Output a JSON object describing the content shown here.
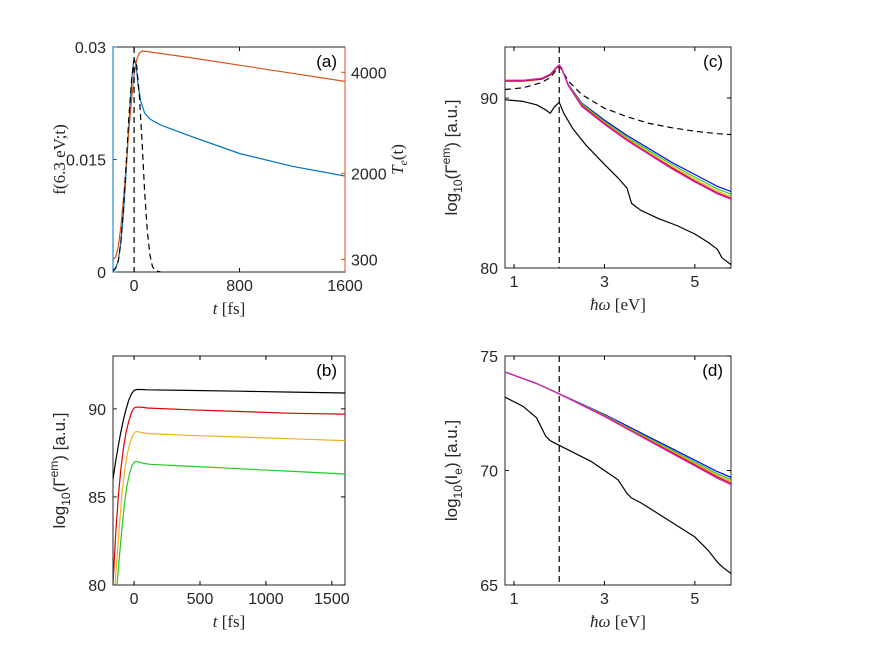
{
  "chart_data": [
    {
      "panel_label": "(a)",
      "type": "line",
      "xlabel": "t [fs]",
      "xlabel_var": "t",
      "xlabel_unit": "[fs]",
      "ylabel_left": "f(6.3 eV;t)",
      "ylabel_right": "T_e(t)",
      "ylabel_right_main": "T",
      "ylabel_right_sub": "e",
      "ylabel_right_tail": "(t)",
      "xlim": [
        -160,
        1600
      ],
      "ylim_left": [
        0,
        0.03
      ],
      "ylim_right": [
        50,
        4500
      ],
      "xticks": [
        0,
        800,
        1600
      ],
      "xtick_labels": [
        "0",
        "800",
        "1600"
      ],
      "yticks_left": [
        0,
        0.015,
        0.03
      ],
      "ytick_labels_left": [
        "0",
        "0.015",
        "0.03"
      ],
      "yticks_right": [
        300,
        2000,
        4000
      ],
      "ytick_labels_right": [
        "300",
        "2000",
        "4000"
      ],
      "colors": {
        "left_axis": "#0072BD",
        "right_axis": "#D95319"
      },
      "series": [
        {
          "axis": "left",
          "color": "#0072BD",
          "style": "solid",
          "x": [
            -160,
            -140,
            -120,
            -100,
            -80,
            -60,
            -40,
            -20,
            -10,
            0,
            10,
            20,
            30,
            50,
            80,
            120,
            200,
            400,
            800,
            1200,
            1600
          ],
          "y": [
            0.0003,
            0.0005,
            0.0015,
            0.004,
            0.008,
            0.0135,
            0.0195,
            0.025,
            0.0272,
            0.0284,
            0.028,
            0.0268,
            0.025,
            0.0228,
            0.0212,
            0.0204,
            0.0196,
            0.0183,
            0.0158,
            0.0141,
            0.0128
          ]
        },
        {
          "axis": "right",
          "color": "#D95319",
          "style": "solid",
          "x": [
            -160,
            -140,
            -120,
            -100,
            -80,
            -60,
            -40,
            -20,
            0,
            20,
            40,
            60,
            100,
            400,
            800,
            1200,
            1600
          ],
          "y": [
            300,
            340,
            550,
            950,
            1500,
            2150,
            2850,
            3450,
            3950,
            4250,
            4380,
            4420,
            4410,
            4300,
            4140,
            3980,
            3820
          ]
        },
        {
          "axis": "left",
          "color": "#000000",
          "style": "dashed",
          "x": [
            -160,
            -140,
            -120,
            -100,
            -80,
            -60,
            -40,
            -20,
            0,
            20,
            40,
            60,
            80,
            100,
            120,
            140,
            160,
            200
          ],
          "y": [
            0.0001,
            0.0005,
            0.0015,
            0.004,
            0.0085,
            0.0145,
            0.0205,
            0.0255,
            0.0284,
            0.0275,
            0.0235,
            0.0175,
            0.0108,
            0.0055,
            0.0023,
            0.0007,
            0.0002,
            0.0
          ]
        }
      ],
      "vline_x": 0
    },
    {
      "panel_label": "(b)",
      "type": "line",
      "xlabel": "t [fs]",
      "xlabel_var": "t",
      "xlabel_unit": "[fs]",
      "ylabel": "log10(Γem) [a.u.]",
      "ylabel_prefix": "log",
      "ylabel_sub": "10",
      "ylabel_mid": "(Γ",
      "ylabel_sup": "em",
      "ylabel_suffix": ") [a.u.]",
      "xlim": [
        -160,
        1600
      ],
      "ylim": [
        80,
        93
      ],
      "xticks": [
        0,
        500,
        1000,
        1500
      ],
      "xtick_labels": [
        "0",
        "500",
        "1000",
        "1500"
      ],
      "yticks": [
        80,
        85,
        90
      ],
      "ytick_labels": [
        "80",
        "85",
        "90"
      ],
      "series": [
        {
          "color": "#000000",
          "x": [
            -160,
            -140,
            -120,
            -100,
            -80,
            -60,
            -40,
            -20,
            0,
            20,
            50,
            100,
            400,
            800,
            1200,
            1600
          ],
          "y": [
            86.0,
            87.0,
            87.9,
            88.7,
            89.4,
            90.0,
            90.5,
            90.85,
            91.05,
            91.1,
            91.1,
            91.08,
            91.05,
            91.0,
            90.95,
            90.9
          ]
        },
        {
          "color": "#E00000",
          "x": [
            -160,
            -140,
            -120,
            -100,
            -80,
            -60,
            -40,
            -20,
            0,
            20,
            50,
            100,
            400,
            800,
            1200,
            1600
          ],
          "y": [
            80.0,
            82.8,
            85.0,
            86.6,
            87.8,
            88.7,
            89.3,
            89.8,
            90.05,
            90.1,
            90.1,
            90.05,
            89.95,
            89.85,
            89.75,
            89.7
          ]
        },
        {
          "color": "#EDB120",
          "x": [
            -145,
            -130,
            -110,
            -90,
            -70,
            -50,
            -30,
            -10,
            10,
            30,
            60,
            100,
            400,
            800,
            1200,
            1600
          ],
          "y": [
            80.0,
            81.5,
            83.5,
            85.3,
            86.6,
            87.5,
            88.1,
            88.5,
            88.7,
            88.7,
            88.65,
            88.6,
            88.5,
            88.4,
            88.3,
            88.2
          ]
        },
        {
          "color": "#22CC22",
          "x": [
            -130,
            -115,
            -95,
            -75,
            -55,
            -35,
            -15,
            5,
            25,
            50,
            80,
            120,
            400,
            800,
            1200,
            1600
          ],
          "y": [
            80.0,
            81.3,
            83.0,
            84.5,
            85.6,
            86.3,
            86.8,
            87.0,
            87.0,
            86.95,
            86.9,
            86.85,
            86.75,
            86.6,
            86.45,
            86.3
          ]
        }
      ]
    },
    {
      "panel_label": "(c)",
      "type": "line",
      "xlabel": "ħω [eV]",
      "xlabel_var": "ħω",
      "xlabel_unit": "[eV]",
      "ylabel": "log10(Γem) [a.u.]",
      "ylabel_prefix": "log",
      "ylabel_sub": "10",
      "ylabel_mid": "(Γ",
      "ylabel_sup": "em",
      "ylabel_suffix": ") [a.u.]",
      "xlim": [
        0.8,
        5.8
      ],
      "ylim": [
        80,
        93
      ],
      "xticks": [
        1,
        3,
        5
      ],
      "xtick_labels": [
        "1",
        "3",
        "5"
      ],
      "yticks": [
        80,
        90
      ],
      "ytick_labels": [
        "80",
        "90"
      ],
      "vline_x": 2.0,
      "series": [
        {
          "color": "#000000",
          "style": "dashed",
          "x": [
            0.8,
            1.2,
            1.6,
            1.8,
            1.95,
            2.0,
            2.05,
            2.2,
            2.5,
            3.0,
            3.5,
            4.0,
            4.5,
            5.0,
            5.5,
            5.8
          ],
          "y": [
            90.5,
            90.6,
            90.9,
            91.2,
            91.7,
            91.85,
            91.7,
            91.0,
            90.2,
            89.4,
            88.9,
            88.5,
            88.25,
            88.05,
            87.9,
            87.85
          ]
        },
        {
          "color": "#0000FF",
          "x": [
            0.8,
            1.2,
            1.6,
            1.8,
            1.95,
            2.0,
            2.05,
            2.2,
            2.5,
            3.0,
            3.5,
            4.0,
            4.5,
            5.0,
            5.5,
            5.8
          ],
          "y": [
            91.0,
            91.0,
            91.1,
            91.35,
            91.8,
            91.9,
            91.75,
            90.8,
            89.7,
            88.7,
            87.8,
            87.0,
            86.2,
            85.5,
            84.8,
            84.5
          ]
        },
        {
          "color": "#22CC22",
          "x": [
            0.8,
            1.2,
            1.6,
            1.8,
            1.95,
            2.0,
            2.05,
            2.2,
            2.5,
            3.0,
            3.5,
            4.0,
            4.5,
            5.0,
            5.5,
            5.8
          ],
          "y": [
            91.0,
            91.0,
            91.1,
            91.35,
            91.8,
            91.9,
            91.75,
            90.78,
            89.65,
            88.62,
            87.7,
            86.88,
            86.08,
            85.35,
            84.65,
            84.35
          ]
        },
        {
          "color": "#EDB120",
          "x": [
            0.8,
            1.2,
            1.6,
            1.8,
            1.95,
            2.0,
            2.05,
            2.2,
            2.5,
            3.0,
            3.5,
            4.0,
            4.5,
            5.0,
            5.5,
            5.8
          ],
          "y": [
            91.0,
            91.0,
            91.1,
            91.35,
            91.8,
            91.9,
            91.75,
            90.76,
            89.6,
            88.56,
            87.62,
            86.78,
            85.96,
            85.22,
            84.52,
            84.2
          ]
        },
        {
          "color": "#E00000",
          "x": [
            0.8,
            1.2,
            1.6,
            1.8,
            1.95,
            2.0,
            2.05,
            2.2,
            2.5,
            3.0,
            3.5,
            4.0,
            4.5,
            5.0,
            5.5,
            5.8
          ],
          "y": [
            91.0,
            91.0,
            91.1,
            91.35,
            91.8,
            91.9,
            91.75,
            90.74,
            89.56,
            88.5,
            87.55,
            86.7,
            85.88,
            85.12,
            84.42,
            84.1
          ]
        },
        {
          "color": "#CC22CC",
          "x": [
            0.8,
            1.2,
            1.6,
            1.8,
            1.95,
            2.0,
            2.05,
            2.2,
            2.5,
            3.0,
            3.5,
            4.0,
            4.5,
            5.0,
            5.5,
            5.8
          ],
          "y": [
            91.05,
            91.05,
            91.15,
            91.4,
            91.85,
            91.95,
            91.8,
            90.72,
            89.5,
            88.45,
            87.5,
            86.65,
            85.82,
            85.06,
            84.36,
            84.05
          ]
        },
        {
          "color": "#000000",
          "x": [
            0.8,
            1.2,
            1.5,
            1.7,
            1.8,
            1.9,
            2.0,
            2.1,
            2.3,
            2.6,
            3.0,
            3.3,
            3.5,
            3.6,
            3.8,
            4.2,
            4.6,
            5.0,
            5.3,
            5.5,
            5.6,
            5.8
          ],
          "y": [
            89.9,
            89.8,
            89.6,
            89.3,
            89.1,
            89.5,
            89.75,
            89.1,
            88.2,
            87.2,
            86.1,
            85.3,
            84.7,
            83.8,
            83.4,
            82.9,
            82.5,
            82.0,
            81.5,
            81.1,
            80.6,
            80.2
          ]
        }
      ]
    },
    {
      "panel_label": "(d)",
      "type": "line",
      "xlabel": "ħω [eV]",
      "xlabel_var": "ħω",
      "xlabel_unit": "[eV]",
      "ylabel": "log10(Ie) [a.u.]",
      "ylabel_prefix": "log",
      "ylabel_sub": "10",
      "ylabel_mid": "(I",
      "ylabel_sub2": "e",
      "ylabel_suffix": ") [a.u.]",
      "xlim": [
        0.8,
        5.8
      ],
      "ylim": [
        65,
        75
      ],
      "xticks": [
        1,
        3,
        5
      ],
      "xtick_labels": [
        "1",
        "3",
        "5"
      ],
      "yticks": [
        65,
        70,
        75
      ],
      "ytick_labels": [
        "65",
        "70",
        "75"
      ],
      "vline_x": 2.0,
      "series": [
        {
          "color": "#0000FF",
          "x": [
            0.8,
            1.5,
            2.0,
            2.5,
            3.0,
            3.5,
            4.0,
            4.5,
            5.0,
            5.5,
            5.8
          ],
          "y": [
            74.3,
            73.8,
            73.35,
            72.9,
            72.45,
            71.95,
            71.45,
            70.95,
            70.45,
            69.95,
            69.7
          ]
        },
        {
          "color": "#22CC22",
          "x": [
            0.8,
            1.5,
            2.0,
            2.5,
            3.0,
            3.5,
            4.0,
            4.5,
            5.0,
            5.5,
            5.8
          ],
          "y": [
            74.3,
            73.8,
            73.35,
            72.88,
            72.42,
            71.9,
            71.39,
            70.88,
            70.37,
            69.86,
            69.6
          ]
        },
        {
          "color": "#EDB120",
          "x": [
            0.8,
            1.5,
            2.0,
            2.5,
            3.0,
            3.5,
            4.0,
            4.5,
            5.0,
            5.5,
            5.8
          ],
          "y": [
            74.3,
            73.8,
            73.35,
            72.87,
            72.4,
            71.87,
            71.35,
            70.83,
            70.31,
            69.79,
            69.52
          ]
        },
        {
          "color": "#E00000",
          "x": [
            0.8,
            1.5,
            2.0,
            2.5,
            3.0,
            3.5,
            4.0,
            4.5,
            5.0,
            5.5,
            5.8
          ],
          "y": [
            74.3,
            73.8,
            73.35,
            72.86,
            72.38,
            71.84,
            71.31,
            70.78,
            70.25,
            69.72,
            69.45
          ]
        },
        {
          "color": "#CC22CC",
          "x": [
            0.8,
            1.5,
            2.0,
            2.5,
            3.0,
            3.5,
            4.0,
            4.5,
            5.0,
            5.5,
            5.8
          ],
          "y": [
            74.3,
            73.8,
            73.35,
            72.85,
            72.36,
            71.82,
            71.28,
            70.74,
            70.2,
            69.66,
            69.38
          ]
        },
        {
          "color": "#000000",
          "x": [
            0.8,
            1.2,
            1.5,
            1.7,
            1.8,
            2.0,
            2.3,
            2.7,
            3.0,
            3.3,
            3.5,
            3.6,
            3.8,
            4.2,
            4.6,
            5.0,
            5.3,
            5.5,
            5.6,
            5.8
          ],
          "y": [
            73.2,
            72.8,
            72.3,
            71.5,
            71.3,
            71.1,
            70.8,
            70.4,
            70.0,
            69.6,
            69.0,
            68.8,
            68.6,
            68.1,
            67.6,
            67.1,
            66.5,
            66.0,
            65.8,
            65.5
          ]
        }
      ]
    }
  ]
}
